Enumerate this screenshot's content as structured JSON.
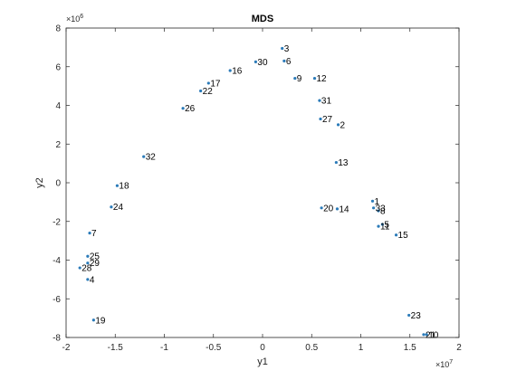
{
  "chart_data": {
    "type": "scatter",
    "title": "MDS",
    "xlabel": "y1",
    "ylabel": "y2",
    "x_exponent": "×10",
    "x_exponent_power": "7",
    "y_exponent": "×10",
    "y_exponent_power": "6",
    "xlim": [
      -20000000,
      20000000
    ],
    "ylim": [
      -8000000,
      8000000
    ],
    "xticks": [
      -20000000,
      -15000000,
      -10000000,
      -5000000,
      0,
      5000000,
      10000000,
      15000000,
      20000000
    ],
    "xtick_labels": [
      "-2",
      "-1.5",
      "-1",
      "-0.5",
      "0",
      "0.5",
      "1",
      "1.5",
      "2"
    ],
    "yticks": [
      -8000000,
      -6000000,
      -4000000,
      -2000000,
      0,
      2000000,
      4000000,
      6000000,
      8000000
    ],
    "ytick_labels": [
      "-8",
      "-6",
      "-4",
      "-2",
      "0",
      "2",
      "4",
      "6",
      "8"
    ],
    "grid": false,
    "marker_color": "#2b7bb9",
    "points": [
      {
        "label": "1",
        "x": 11200000,
        "y": -950000
      },
      {
        "label": "2",
        "x": 7700000,
        "y": 3000000
      },
      {
        "label": "3",
        "x": 2000000,
        "y": 6950000
      },
      {
        "label": "4",
        "x": -17800000,
        "y": -5000000
      },
      {
        "label": "5",
        "x": 12200000,
        "y": -2150000
      },
      {
        "label": "6",
        "x": 2200000,
        "y": 6300000
      },
      {
        "label": "7",
        "x": -17600000,
        "y": -2600000
      },
      {
        "label": "8",
        "x": 11800000,
        "y": -1450000
      },
      {
        "label": "9",
        "x": 3300000,
        "y": 5400000
      },
      {
        "label": "10",
        "x": 16700000,
        "y": -7850000
      },
      {
        "label": "11",
        "x": 11800000,
        "y": -2250000
      },
      {
        "label": "12",
        "x": 5300000,
        "y": 5400000
      },
      {
        "label": "13",
        "x": 7500000,
        "y": 1050000
      },
      {
        "label": "14",
        "x": 7600000,
        "y": -1350000
      },
      {
        "label": "15",
        "x": 13600000,
        "y": -2700000
      },
      {
        "label": "16",
        "x": -3300000,
        "y": 5800000
      },
      {
        "label": "17",
        "x": -5500000,
        "y": 5150000
      },
      {
        "label": "18",
        "x": -14800000,
        "y": -150000
      },
      {
        "label": "19",
        "x": -17200000,
        "y": -7100000
      },
      {
        "label": "20",
        "x": 6000000,
        "y": -1300000
      },
      {
        "label": "21",
        "x": 16400000,
        "y": -7850000
      },
      {
        "label": "22",
        "x": -6300000,
        "y": 4750000
      },
      {
        "label": "23",
        "x": 14900000,
        "y": -6850000
      },
      {
        "label": "24",
        "x": -15400000,
        "y": -1250000
      },
      {
        "label": "25",
        "x": -17800000,
        "y": -3800000
      },
      {
        "label": "26",
        "x": -8100000,
        "y": 3850000
      },
      {
        "label": "27",
        "x": 5900000,
        "y": 3300000
      },
      {
        "label": "28",
        "x": -18600000,
        "y": -4400000
      },
      {
        "label": "29",
        "x": -17800000,
        "y": -4150000
      },
      {
        "label": "30",
        "x": -700000,
        "y": 6250000
      },
      {
        "label": "31",
        "x": 5800000,
        "y": 4250000
      },
      {
        "label": "32",
        "x": -12100000,
        "y": 1350000
      },
      {
        "label": "33",
        "x": 11300000,
        "y": -1300000
      }
    ]
  }
}
